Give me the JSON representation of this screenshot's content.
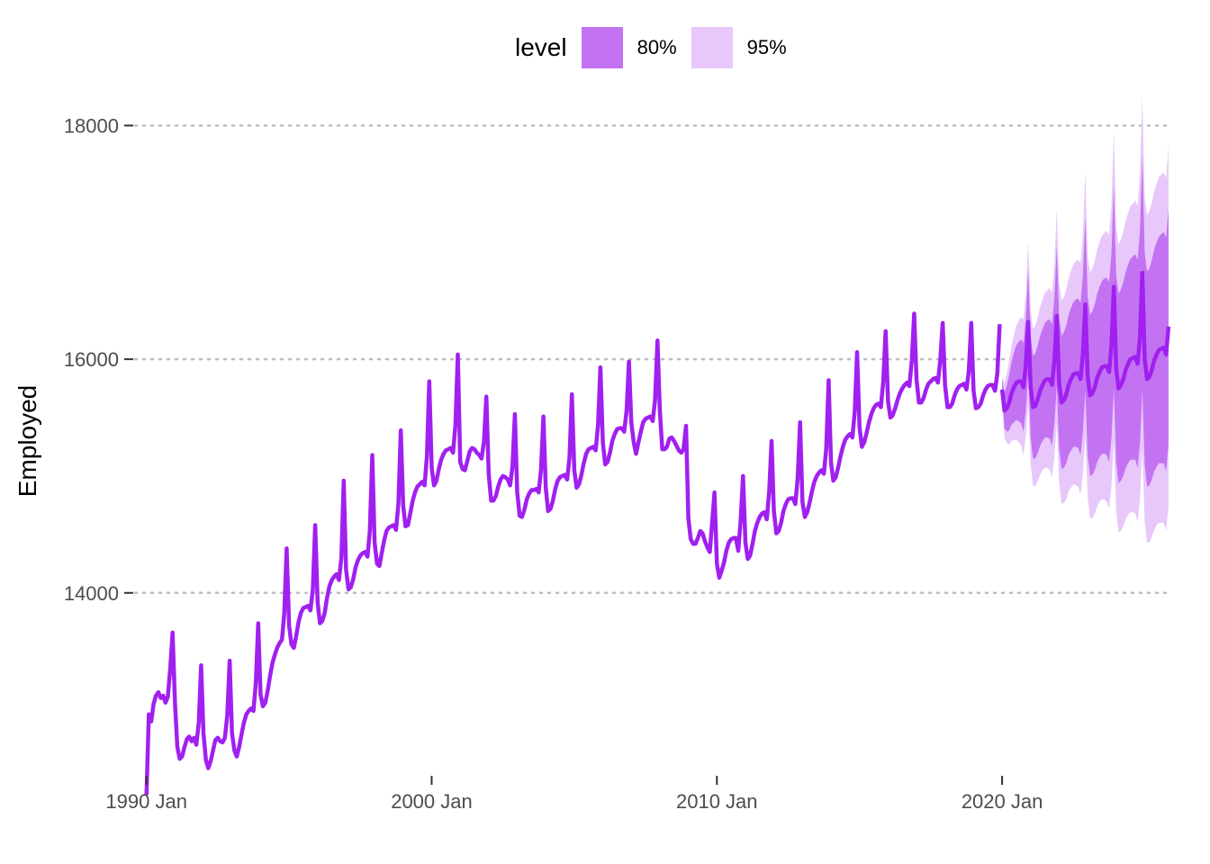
{
  "chart_data": {
    "type": "line",
    "ylabel": "Employed",
    "xlabel": "",
    "ylim": [
      12450,
      18150
    ],
    "xlim": [
      1989.6,
      2025.9
    ],
    "y_ticks": [
      14000,
      16000,
      18000
    ],
    "x_ticks": [
      {
        "value": 1990.0,
        "label": "1990 Jan"
      },
      {
        "value": 2000.0,
        "label": "2000 Jan"
      },
      {
        "value": 2010.0,
        "label": "2010 Jan"
      },
      {
        "value": 2020.0,
        "label": "2020 Jan"
      }
    ],
    "grid": "horizontal dotted",
    "legend": {
      "title": "level",
      "position": "top",
      "entries": [
        {
          "label": "80%",
          "color": "#c373f2"
        },
        {
          "label": "95%",
          "color": "#e8c8fa"
        }
      ]
    },
    "colors": {
      "line": "#a020f0",
      "band80": "#c373f2",
      "band95": "#e8c8fa"
    },
    "series": [
      {
        "role": "history",
        "description": "monthly values, Jan 1990 to Dec 2019, 12 values per year",
        "years": [
          {
            "year": 1990,
            "values": [
              12270,
              12960,
              12900,
              13050,
              13120,
              13150,
              13100,
              13120,
              13060,
              13110,
              13350,
              13660
            ]
          },
          {
            "year": 1991,
            "values": [
              13050,
              12680,
              12580,
              12600,
              12680,
              12750,
              12770,
              12730,
              12760,
              12700,
              12890,
              13380
            ]
          },
          {
            "year": 1992,
            "values": [
              12800,
              12570,
              12500,
              12560,
              12650,
              12740,
              12760,
              12730,
              12720,
              12760,
              12950,
              13420
            ]
          },
          {
            "year": 1993,
            "values": [
              12800,
              12650,
              12600,
              12680,
              12790,
              12890,
              12960,
              12990,
              13010,
              12990,
              13220,
              13740
            ]
          },
          {
            "year": 1994,
            "values": [
              13130,
              13030,
              13060,
              13160,
              13290,
              13400,
              13470,
              13530,
              13570,
              13600,
              13830,
              14380
            ]
          },
          {
            "year": 1995,
            "values": [
              13720,
              13560,
              13530,
              13630,
              13750,
              13830,
              13870,
              13880,
              13890,
              13850,
              14030,
              14580
            ]
          },
          {
            "year": 1996,
            "values": [
              13920,
              13740,
              13760,
              13830,
              13960,
              14060,
              14110,
              14140,
              14160,
              14110,
              14300,
              14960
            ]
          },
          {
            "year": 1997,
            "values": [
              14200,
              14030,
              14050,
              14120,
              14220,
              14280,
              14320,
              14340,
              14350,
              14310,
              14530,
              15180
            ]
          },
          {
            "year": 1998,
            "values": [
              14430,
              14250,
              14230,
              14340,
              14450,
              14530,
              14560,
              14570,
              14580,
              14540,
              14760,
              15390
            ]
          },
          {
            "year": 1999,
            "values": [
              14750,
              14570,
              14580,
              14680,
              14790,
              14860,
              14910,
              14930,
              14950,
              14920,
              15170,
              15810
            ]
          },
          {
            "year": 2000,
            "values": [
              15070,
              14920,
              14960,
              15060,
              15140,
              15190,
              15220,
              15230,
              15240,
              15200,
              15440,
              16040
            ]
          },
          {
            "year": 2001,
            "values": [
              15120,
              15060,
              15050,
              15130,
              15210,
              15240,
              15230,
              15200,
              15180,
              15150,
              15300,
              15680
            ]
          },
          {
            "year": 2002,
            "values": [
              15020,
              14790,
              14790,
              14830,
              14910,
              14970,
              15000,
              14990,
              14970,
              14920,
              15080,
              15530
            ]
          },
          {
            "year": 2003,
            "values": [
              14860,
              14660,
              14650,
              14710,
              14800,
              14850,
              14880,
              14880,
              14890,
              14860,
              15050,
              15510
            ]
          },
          {
            "year": 2004,
            "values": [
              14900,
              14700,
              14720,
              14790,
              14890,
              14960,
              14990,
              15000,
              15010,
              14970,
              15160,
              15700
            ]
          },
          {
            "year": 2005,
            "values": [
              15050,
              14900,
              14930,
              15010,
              15110,
              15190,
              15230,
              15240,
              15250,
              15220,
              15440,
              15930
            ]
          },
          {
            "year": 2006,
            "values": [
              15290,
              15100,
              15120,
              15200,
              15300,
              15360,
              15400,
              15410,
              15410,
              15380,
              15560,
              15980
            ]
          },
          {
            "year": 2007,
            "values": [
              15460,
              15290,
              15190,
              15290,
              15380,
              15460,
              15490,
              15500,
              15510,
              15470,
              15650,
              16160
            ]
          },
          {
            "year": 2008,
            "values": [
              15560,
              15230,
              15230,
              15250,
              15320,
              15330,
              15300,
              15260,
              15220,
              15200,
              15230,
              15430
            ]
          },
          {
            "year": 2009,
            "values": [
              14640,
              14460,
              14420,
              14420,
              14470,
              14530,
              14510,
              14440,
              14390,
              14350,
              14600,
              14860
            ]
          },
          {
            "year": 2010,
            "values": [
              14250,
              14130,
              14190,
              14260,
              14360,
              14430,
              14460,
              14470,
              14470,
              14360,
              14620,
              15000
            ]
          },
          {
            "year": 2011,
            "values": [
              14430,
              14290,
              14320,
              14420,
              14530,
              14600,
              14650,
              14680,
              14690,
              14630,
              14870,
              15300
            ]
          },
          {
            "year": 2012,
            "values": [
              14700,
              14510,
              14530,
              14600,
              14700,
              14760,
              14800,
              14810,
              14810,
              14760,
              14980,
              15460
            ]
          },
          {
            "year": 2013,
            "values": [
              14780,
              14650,
              14690,
              14770,
              14870,
              14950,
              15000,
              15030,
              15050,
              15020,
              15230,
              15820
            ]
          },
          {
            "year": 2014,
            "values": [
              15120,
              14960,
              14990,
              15070,
              15170,
              15250,
              15310,
              15340,
              15360,
              15330,
              15550,
              16060
            ]
          },
          {
            "year": 2015,
            "values": [
              15420,
              15250,
              15290,
              15370,
              15460,
              15530,
              15580,
              15610,
              15620,
              15590,
              15810,
              16240
            ]
          },
          {
            "year": 2016,
            "values": [
              15640,
              15500,
              15520,
              15580,
              15650,
              15710,
              15750,
              15780,
              15800,
              15770,
              15990,
              16390
            ]
          },
          {
            "year": 2017,
            "values": [
              15830,
              15630,
              15630,
              15670,
              15740,
              15790,
              15810,
              15830,
              15840,
              15800,
              15990,
              16310
            ]
          },
          {
            "year": 2018,
            "values": [
              15780,
              15590,
              15590,
              15620,
              15690,
              15740,
              15770,
              15780,
              15790,
              15740,
              15900,
              16310
            ]
          },
          {
            "year": 2019,
            "values": [
              15730,
              15580,
              15590,
              15620,
              15690,
              15740,
              15770,
              15780,
              15780,
              15730,
              15880,
              16300
            ]
          }
        ]
      },
      {
        "role": "forecast",
        "description": "monthly point forecasts Jan 2020 to Nov 2025 with 80% and 95% interval half-widths",
        "values": [
          15740,
          15560,
          15580,
          15630,
          15710,
          15760,
          15800,
          15810,
          15810,
          15760,
          15960,
          16320,
          15760,
          15590,
          15600,
          15660,
          15730,
          15780,
          15820,
          15830,
          15830,
          15780,
          15990,
          16370,
          15800,
          15630,
          15650,
          15700,
          15780,
          15830,
          15870,
          15880,
          15880,
          15830,
          16040,
          16470,
          15860,
          15690,
          15710,
          15760,
          15840,
          15890,
          15930,
          15940,
          15940,
          15890,
          16110,
          16620,
          15920,
          15750,
          15780,
          15830,
          15910,
          15960,
          16000,
          16010,
          16020,
          15960,
          16190,
          16740,
          16000,
          15830,
          15850,
          15910,
          15990,
          16040,
          16080,
          16090,
          16100,
          16040,
          16280
        ],
        "half_width_80": [
          80,
          150,
          200,
          240,
          270,
          300,
          320,
          340,
          360,
          380,
          400,
          450,
          430,
          440,
          450,
          460,
          470,
          480,
          490,
          500,
          510,
          520,
          540,
          600,
          560,
          570,
          580,
          590,
          600,
          610,
          620,
          630,
          640,
          650,
          670,
          740,
          680,
          690,
          700,
          710,
          720,
          730,
          740,
          750,
          760,
          770,
          790,
          870,
          800,
          810,
          820,
          830,
          840,
          850,
          860,
          870,
          880,
          890,
          910,
          1000,
          910,
          920,
          930,
          940,
          950,
          960,
          970,
          980,
          990,
          1000,
          1010
        ],
        "half_width_95": [
          120,
          230,
          300,
          360,
          410,
          450,
          490,
          520,
          550,
          580,
          610,
          690,
          660,
          670,
          690,
          700,
          720,
          730,
          750,
          760,
          780,
          790,
          820,
          920,
          860,
          870,
          880,
          900,
          910,
          930,
          940,
          960,
          970,
          990,
          1020,
          1130,
          1040,
          1050,
          1070,
          1080,
          1100,
          1110,
          1130,
          1140,
          1160,
          1170,
          1200,
          1330,
          1220,
          1230,
          1250,
          1260,
          1280,
          1290,
          1310,
          1320,
          1340,
          1350,
          1390,
          1520,
          1390,
          1400,
          1420,
          1430,
          1450,
          1460,
          1480,
          1490,
          1500,
          1510,
          1540
        ]
      }
    ]
  }
}
